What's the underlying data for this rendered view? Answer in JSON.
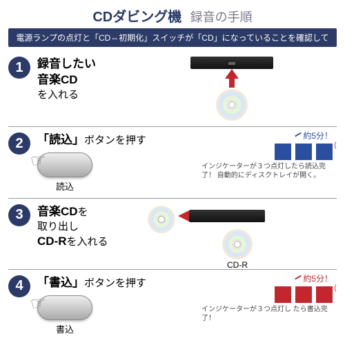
{
  "colors": {
    "navy": "#2b3a67",
    "red": "#c1272d",
    "blue_box": "#2b4fa0",
    "red_box": "#c1272d",
    "title_navy": "#2b3a67",
    "title_gray": "#7a7a8a",
    "banner_bg": "#2b3a67"
  },
  "header": {
    "main": "CDダビング機",
    "sub": "録音の手順"
  },
  "banner": "電源ランプの点灯と「CD⇔初期化」スイッチが「CD」になっていることを確認して",
  "steps": [
    {
      "num": "1",
      "text_html": "<span class='em'>録音したい</span><br><span class='em'>音楽CD</span><br>を入れる",
      "arrow_color": "#c1272d"
    },
    {
      "num": "2",
      "text_html": "<span class='em'>「読込」</span>ボタンを押す",
      "btn_label": "読込",
      "approx": "約5分！",
      "approx_color": "#2b4fa0",
      "box_color": "#2b4fa0",
      "spark_color": "#c1272d",
      "note": "インジケーターが３つ点灯したら読込完了！\n自動的にディスクトレイが開く。"
    },
    {
      "num": "3",
      "text_html": "<span class='em'>音楽CD</span>を<br>取り出し<br><span class='em'>CD-R</span>を入れる",
      "arrow_color": "#c1272d",
      "cdr_label": "CD-R"
    },
    {
      "num": "4",
      "text_html": "<span class='em'>「書込」</span>ボタンを押す",
      "btn_label": "書込",
      "approx": "約5分！",
      "approx_color": "#c1272d",
      "box_color": "#c1272d",
      "spark_color": "#c1272d",
      "note": "インジケーターが３つ点灯し\nたら書込完了！"
    }
  ]
}
